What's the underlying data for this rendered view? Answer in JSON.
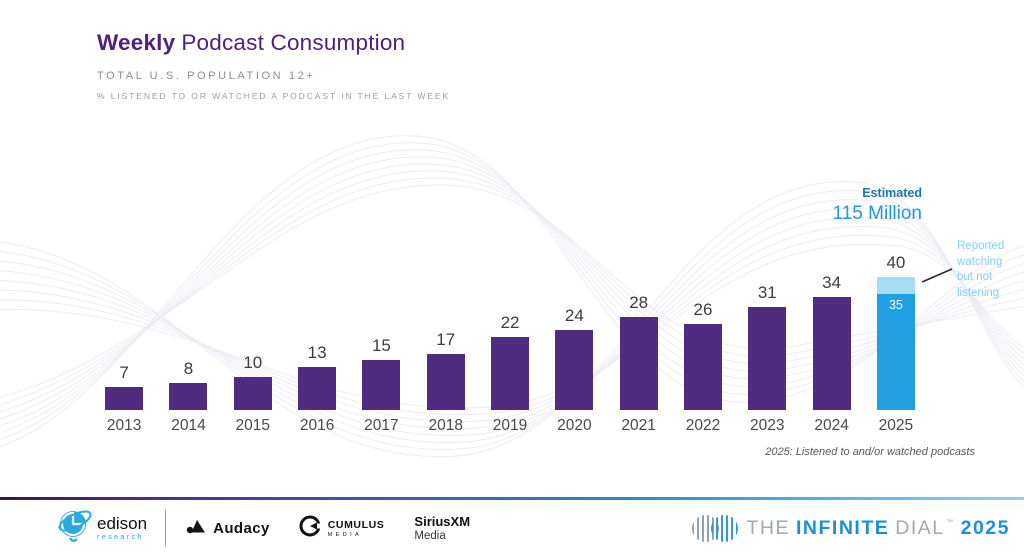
{
  "header": {
    "title_bold": "Weekly",
    "title_rest": "Podcast Consumption",
    "subtitle": "TOTAL U.S. POPULATION 12+",
    "description": "% LISTENED TO OR WATCHED A PODCAST IN THE LAST WEEK"
  },
  "chart_data": {
    "type": "bar",
    "title": "Weekly Podcast Consumption",
    "subtitle": "Total U.S. Population 12+ — % listened to or watched a podcast in the last week",
    "categories": [
      "2013",
      "2014",
      "2015",
      "2016",
      "2017",
      "2018",
      "2019",
      "2020",
      "2021",
      "2022",
      "2023",
      "2024",
      "2025"
    ],
    "values": [
      7,
      8,
      10,
      13,
      15,
      17,
      22,
      24,
      28,
      26,
      31,
      34,
      40
    ],
    "stacked_category": "2025",
    "stacked": {
      "listened": 35,
      "watched_not_listening": 5,
      "total": 40
    },
    "ylim": [
      0,
      45
    ],
    "grid": false,
    "legend": false,
    "colors": {
      "bar": "#4f2c80",
      "bar_2025": "#219fe0",
      "bar_2025_top": "#a8dcf5"
    }
  },
  "annotations": {
    "estimated_label": "Estimated",
    "estimated_value": "115 Million",
    "watching_note": "Reported watching but not listening",
    "inner_value_2025": "35",
    "footnote": "2025: Listened to and/or watched podcasts"
  },
  "footer": {
    "edison": {
      "name": "edison",
      "sub": "research"
    },
    "audacy": {
      "name": "Audacy"
    },
    "cumulus": {
      "name": "CUMULUS",
      "sub": "MEDIA"
    },
    "siriusxm": {
      "name": "SiriusXM",
      "sub": "Media"
    },
    "infinite_dial": {
      "the": "THE",
      "infinite": "INFINITE",
      "dial": "DIAL",
      "tm": "™",
      "year": "2025"
    }
  }
}
